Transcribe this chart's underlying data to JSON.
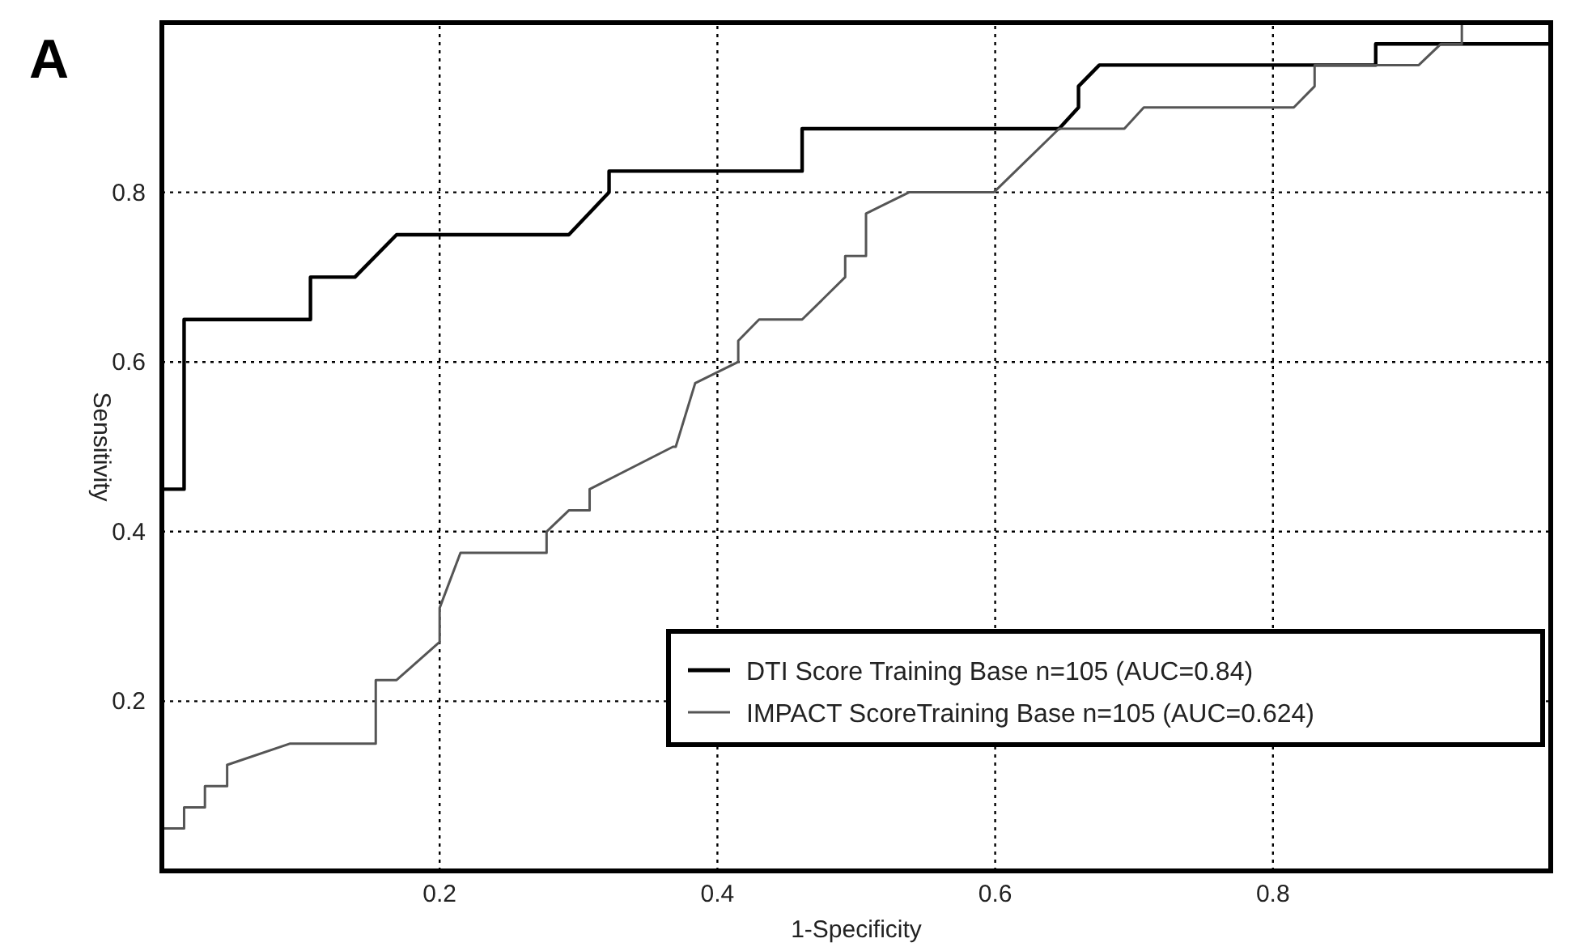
{
  "chart_data": {
    "type": "line",
    "title": "A",
    "xlabel": "1-Specificity",
    "ylabel": "Sensitivity",
    "xlim": [
      0,
      1
    ],
    "ylim": [
      0,
      1
    ],
    "xticks": [
      0.2,
      0.4,
      0.6,
      0.8
    ],
    "yticks": [
      0.2,
      0.4,
      0.6,
      0.8
    ],
    "grid": true,
    "legend": "bottom right",
    "marker": "none",
    "line_style": "solid",
    "series": [
      {
        "name": "DTI Score Training Base n=105 (AUC=0.84)",
        "color": "#000000",
        "x": [
          0,
          0.016,
          0.016,
          0.107,
          0.107,
          0.139,
          0.169,
          0.293,
          0.322,
          0.322,
          0.461,
          0.461,
          0.646,
          0.66,
          0.66,
          0.675,
          0.874,
          0.874,
          1
        ],
        "values": [
          0.45,
          0.45,
          0.65,
          0.65,
          0.7,
          0.7,
          0.75,
          0.75,
          0.8,
          0.825,
          0.825,
          0.875,
          0.875,
          0.9,
          0.925,
          0.95,
          0.95,
          0.975,
          0.975
        ]
      },
      {
        "name": "IMPACT ScoreTraining Base n=105 (AUC=0.624)",
        "color": "#555555",
        "x": [
          0,
          0.016,
          0.016,
          0.031,
          0.031,
          0.047,
          0.047,
          0.092,
          0.154,
          0.154,
          0.169,
          0.2,
          0.2,
          0.215,
          0.277,
          0.277,
          0.293,
          0.308,
          0.308,
          0.368,
          0.37,
          0.384,
          0.415,
          0.415,
          0.43,
          0.461,
          0.492,
          0.492,
          0.507,
          0.507,
          0.538,
          0.599,
          0.646,
          0.693,
          0.707,
          0.815,
          0.83,
          0.83,
          0.905,
          0.921,
          0.936,
          0.936,
          1
        ],
        "values": [
          0.05,
          0.05,
          0.075,
          0.075,
          0.1,
          0.1,
          0.125,
          0.15,
          0.15,
          0.225,
          0.225,
          0.27,
          0.31,
          0.375,
          0.375,
          0.4,
          0.425,
          0.425,
          0.45,
          0.5,
          0.5,
          0.575,
          0.6,
          0.625,
          0.65,
          0.65,
          0.7,
          0.725,
          0.725,
          0.775,
          0.8,
          0.8,
          0.875,
          0.875,
          0.9,
          0.9,
          0.925,
          0.95,
          0.95,
          0.975,
          0.975,
          1,
          1
        ]
      }
    ]
  }
}
